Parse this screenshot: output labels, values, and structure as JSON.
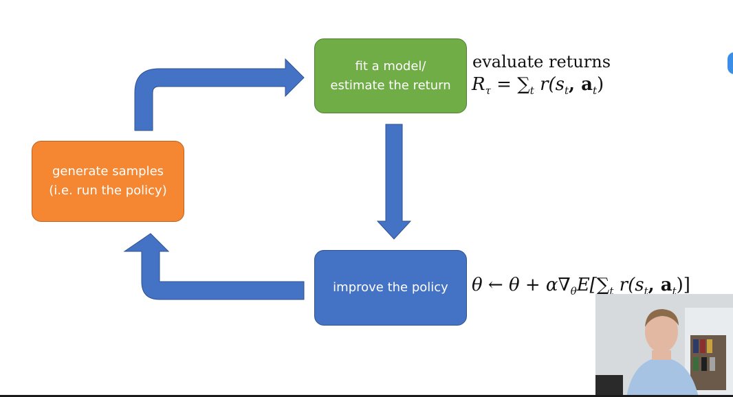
{
  "diagram": {
    "boxes": {
      "fit": {
        "line1": "fit a model/",
        "line2": "estimate the return",
        "color": "#70ad47"
      },
      "generate": {
        "line1": "generate samples",
        "line2": "(i.e. run the policy)",
        "color": "#f58733"
      },
      "improve": {
        "line1": "improve the policy",
        "color": "#4472c4"
      }
    },
    "annotations": {
      "evaluate_label": "evaluate returns",
      "evaluate_lhs": "R",
      "evaluate_lhs_sub": "τ",
      "evaluate_rhs_sum": "∑",
      "evaluate_rhs_sub": "t",
      "evaluate_rhs_body": "r(s",
      "evaluate_rhs_s_sub": "t",
      "evaluate_rhs_mid": ", a",
      "evaluate_rhs_a_sub": "t",
      "evaluate_rhs_close": ")",
      "grad_text": "θ ← θ + α∇",
      "grad_sub": "θ",
      "grad_tail": "E[∑",
      "grad_tail_sub": "t",
      "grad_tail_body": " r(s",
      "grad_s_sub": "t",
      "grad_mid": ", a",
      "grad_a_sub": "t",
      "grad_close": ")]"
    },
    "arrow_color": "#4472c4"
  }
}
